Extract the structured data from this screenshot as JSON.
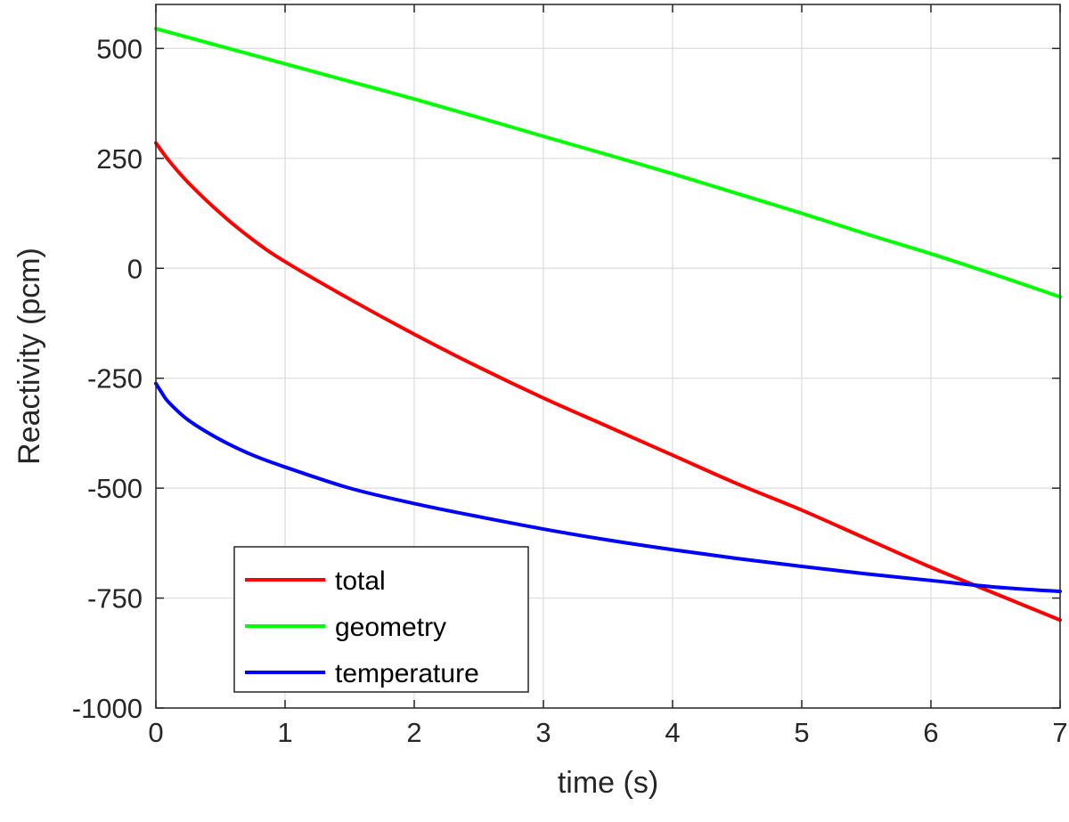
{
  "chart_data": {
    "type": "line",
    "xlabel": "time (s)",
    "ylabel": "Reactivity (pcm)",
    "xlim": [
      0,
      7
    ],
    "ylim": [
      -1000,
      600
    ],
    "xticks": [
      0,
      1,
      2,
      3,
      4,
      5,
      6,
      7
    ],
    "yticks": [
      -1000,
      -750,
      -500,
      -250,
      0,
      250,
      500
    ],
    "xtick_labels": [
      "0",
      "1",
      "2",
      "3",
      "4",
      "5",
      "6",
      "7"
    ],
    "ytick_labels": [
      "-1000",
      "-750",
      "-500",
      "-250",
      "0",
      "250",
      "500"
    ],
    "grid": true,
    "legend_position": "bottom-left",
    "series": [
      {
        "name": "total",
        "color": "#ff0000",
        "x": [
          0,
          0.1,
          0.25,
          0.5,
          0.75,
          1,
          1.5,
          2,
          2.5,
          3,
          3.5,
          4,
          4.5,
          5,
          5.5,
          6,
          6.5,
          7
        ],
        "y": [
          285,
          245,
          195,
          125,
          65,
          15,
          -70,
          -150,
          -225,
          -295,
          -360,
          -425,
          -490,
          -550,
          -615,
          -680,
          -740,
          -800
        ]
      },
      {
        "name": "geometry",
        "color": "#00ff00",
        "x": [
          0,
          0.5,
          1,
          1.5,
          2,
          2.5,
          3,
          3.5,
          4,
          4.5,
          5,
          5.5,
          6,
          6.5,
          7
        ],
        "y": [
          545,
          505,
          465,
          425,
          385,
          343,
          300,
          258,
          215,
          170,
          125,
          78,
          33,
          -15,
          -65
        ]
      },
      {
        "name": "temperature",
        "color": "#0000ff",
        "x": [
          0,
          0.05,
          0.1,
          0.25,
          0.5,
          0.75,
          1,
          1.5,
          2,
          2.5,
          3,
          3.5,
          4,
          4.5,
          5,
          5.5,
          6,
          6.5,
          7
        ],
        "y": [
          -262,
          -285,
          -305,
          -345,
          -390,
          -425,
          -452,
          -500,
          -535,
          -565,
          -593,
          -618,
          -640,
          -660,
          -678,
          -695,
          -710,
          -725,
          -735
        ]
      }
    ]
  }
}
